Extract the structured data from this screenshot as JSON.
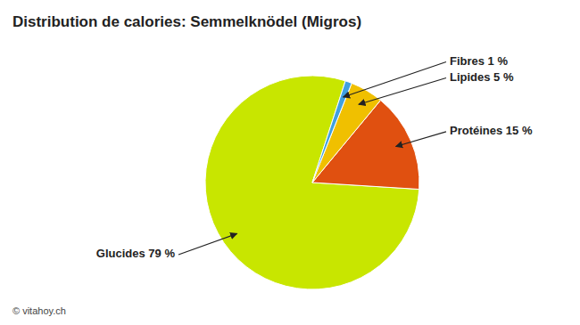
{
  "chart_data": {
    "type": "pie",
    "title": "Distribution de calories: Semmelknödel (Migros)",
    "categories": [
      "Glucides 79 %",
      "Protéines 15 %",
      "Lipides 5 %",
      "Fibres 1 %"
    ],
    "values": [
      79,
      15,
      5,
      1
    ],
    "colors": [
      "#c8e600",
      "#e05010",
      "#f0c000",
      "#40a0e0"
    ],
    "annotations": [
      "© vitahoy.ch"
    ]
  }
}
